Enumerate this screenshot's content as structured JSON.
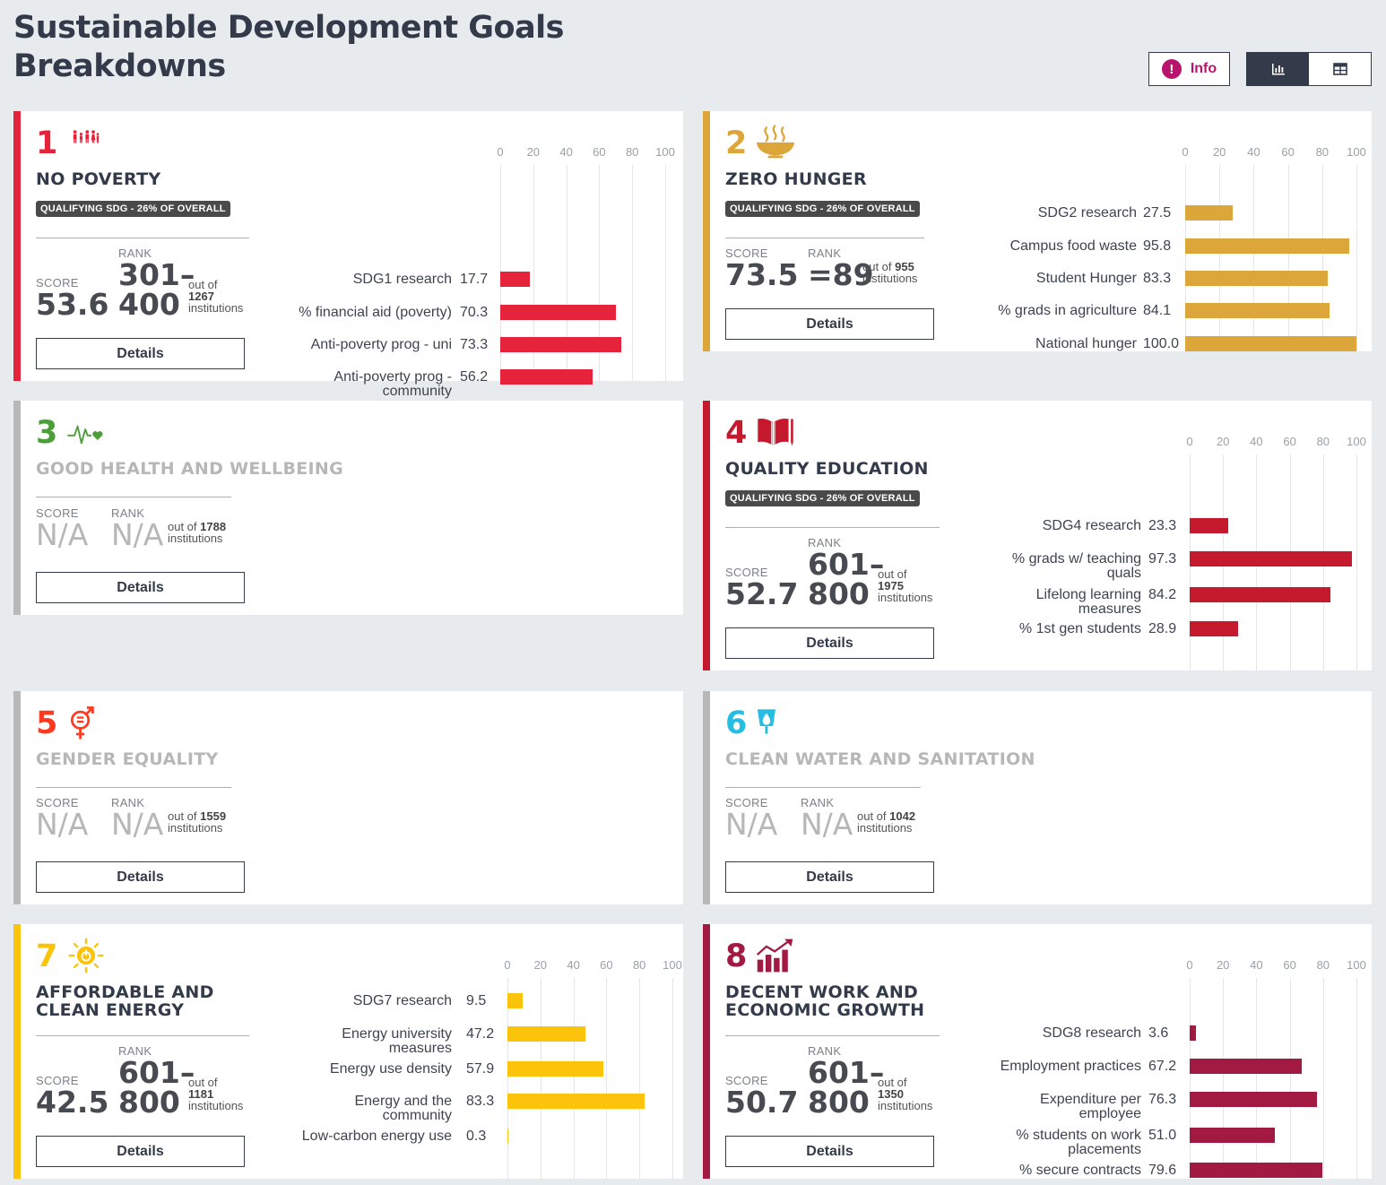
{
  "page": {
    "title_line1": "Sustainable Development Goals",
    "title_line2": "Breakdowns",
    "info_label": "Info"
  },
  "axis_ticks": [
    "0",
    "20",
    "40",
    "60",
    "80",
    "100"
  ],
  "labels": {
    "score": "SCORE",
    "rank": "RANK",
    "out_of": "out of",
    "institutions": "institutions",
    "details": "Details",
    "qualifying": "QUALIFYING SDG - 26% OF OVERALL"
  },
  "colors": {
    "sdg1": "#e5243b",
    "sdg2": "#dda63a",
    "sdg3": "#4c9f38",
    "sdg4": "#c5192d",
    "sdg5": "#ff3a21",
    "sdg6": "#26bde2",
    "sdg7": "#fcc30b",
    "sdg8": "#a21942",
    "na_border": "#b8b8b8"
  },
  "cards": [
    {
      "number": "1",
      "title_lines": [
        "NO POVERTY"
      ],
      "qualifying": true,
      "score": "53.6",
      "rank_lines": [
        "301–",
        "400"
      ],
      "total": "1267",
      "icon": "people-family-icon"
    },
    {
      "number": "2",
      "title_lines": [
        "ZERO HUNGER"
      ],
      "qualifying": true,
      "score": "73.5",
      "rank_lines": [
        "=89"
      ],
      "total": "955",
      "icon": "food-bowl-icon"
    },
    {
      "number": "3",
      "title_lines": [
        "GOOD HEALTH AND WELLBEING"
      ],
      "qualifying": false,
      "score": "N/A",
      "rank_lines": [
        "N/A"
      ],
      "total": "1788",
      "icon": "heartbeat-icon"
    },
    {
      "number": "4",
      "title_lines": [
        "QUALITY EDUCATION"
      ],
      "qualifying": true,
      "score": "52.7",
      "rank_lines": [
        "601–",
        "800"
      ],
      "total": "1975",
      "icon": "book-pencil-icon"
    },
    {
      "number": "5",
      "title_lines": [
        "GENDER EQUALITY"
      ],
      "qualifying": false,
      "score": "N/A",
      "rank_lines": [
        "N/A"
      ],
      "total": "1559",
      "icon": "gender-equality-icon"
    },
    {
      "number": "6",
      "title_lines": [
        "CLEAN WATER AND SANITATION"
      ],
      "qualifying": false,
      "score": "N/A",
      "rank_lines": [
        "N/A"
      ],
      "total": "1042",
      "icon": "water-drop-glass-icon"
    },
    {
      "number": "7",
      "title_lines": [
        "AFFORDABLE AND",
        "CLEAN ENERGY"
      ],
      "qualifying": false,
      "score": "42.5",
      "rank_lines": [
        "601–",
        "800"
      ],
      "total": "1181",
      "icon": "sun-power-icon"
    },
    {
      "number": "8",
      "title_lines": [
        "DECENT WORK AND",
        "ECONOMIC GROWTH"
      ],
      "qualifying": false,
      "score": "50.7",
      "rank_lines": [
        "601–",
        "800"
      ],
      "total": "1350",
      "icon": "growth-chart-icon"
    }
  ],
  "chart_data": [
    {
      "type": "bar",
      "title": "NO POVERTY",
      "xlim": [
        0,
        100
      ],
      "categories": [
        [
          "SDG1 research"
        ],
        [
          "% financial aid (poverty)"
        ],
        [
          "Anti-poverty prog - uni"
        ],
        [
          "Anti-poverty prog -",
          "community"
        ]
      ],
      "values": [
        17.7,
        70.3,
        73.3,
        56.2
      ],
      "value_labels": [
        "17.7",
        "70.3",
        "73.3",
        "56.2"
      ],
      "color": "#e5243b"
    },
    {
      "type": "bar",
      "title": "ZERO HUNGER",
      "xlim": [
        0,
        100
      ],
      "categories": [
        [
          "SDG2 research"
        ],
        [
          "Campus food waste"
        ],
        [
          "Student Hunger"
        ],
        [
          "% grads in agriculture"
        ],
        [
          "National hunger"
        ]
      ],
      "values": [
        27.5,
        95.8,
        83.3,
        84.1,
        100.0
      ],
      "value_labels": [
        "27.5",
        "95.8",
        "83.3",
        "84.1",
        "100.0"
      ],
      "color": "#dda63a"
    },
    {
      "type": "bar",
      "title": "QUALITY EDUCATION",
      "xlim": [
        0,
        100
      ],
      "categories": [
        [
          "SDG4 research"
        ],
        [
          "% grads w/ teaching",
          "quals"
        ],
        [
          "Lifelong learning",
          "measures"
        ],
        [
          "% 1st gen students"
        ]
      ],
      "values": [
        23.3,
        97.3,
        84.2,
        28.9
      ],
      "value_labels": [
        "23.3",
        "97.3",
        "84.2",
        "28.9"
      ],
      "color": "#c5192d"
    },
    {
      "type": "bar",
      "title": "AFFORDABLE AND CLEAN ENERGY",
      "xlim": [
        0,
        100
      ],
      "categories": [
        [
          "SDG7 research"
        ],
        [
          "Energy university",
          "measures"
        ],
        [
          "Energy use density"
        ],
        [
          "Energy and the",
          "community"
        ],
        [
          "Low-carbon energy use"
        ]
      ],
      "values": [
        9.5,
        47.2,
        57.9,
        83.3,
        0.3
      ],
      "value_labels": [
        "9.5",
        "47.2",
        "57.9",
        "83.3",
        "0.3"
      ],
      "color": "#fcc30b"
    },
    {
      "type": "bar",
      "title": "DECENT WORK AND ECONOMIC GROWTH",
      "xlim": [
        0,
        100
      ],
      "categories": [
        [
          "SDG8 research"
        ],
        [
          "Employment practices"
        ],
        [
          "Expenditure per",
          "employee"
        ],
        [
          "% students on work",
          "placements"
        ],
        [
          "% secure contracts"
        ]
      ],
      "values": [
        3.6,
        67.2,
        76.3,
        51.0,
        79.6
      ],
      "value_labels": [
        "3.6",
        "67.2",
        "76.3",
        "51.0",
        "79.6"
      ],
      "color": "#a21942"
    }
  ]
}
